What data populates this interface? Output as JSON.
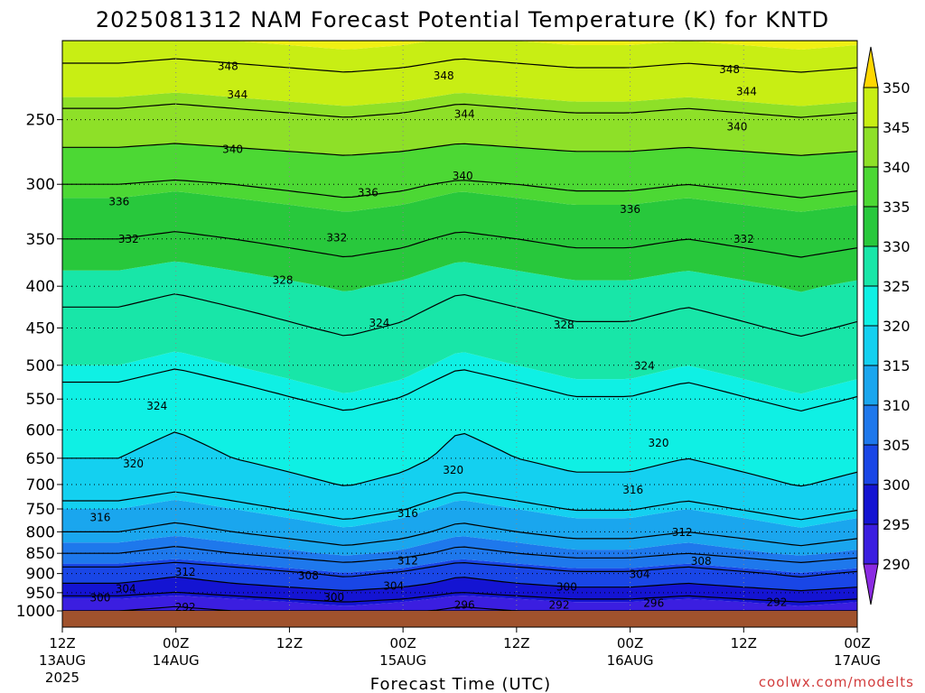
{
  "header": {
    "title": "2025081312 NAM Forecast Potential Temperature (K) for KNTD"
  },
  "footer": {
    "xlabel": "Forecast Time (UTC)",
    "credit": "coolwx.com/modelts"
  },
  "colors": {
    "ground": "#a0522d",
    "credit": "#d23c3c",
    "bands": [
      "#8b2be2",
      "#3b1ee0",
      "#1414d2",
      "#1946e6",
      "#1e78ec",
      "#1aa6ee",
      "#14d0f0",
      "#0ff0e4",
      "#18e6a8",
      "#28c83c",
      "#4cd834",
      "#8ee028",
      "#c8ee14",
      "#f0f014",
      "#ffd700"
    ]
  },
  "chart_data": {
    "type": "heatmap",
    "title": "2025081312 NAM Forecast Potential Temperature (K) for KNTD",
    "xlabel": "Forecast Time (UTC)",
    "ylabel": "",
    "y_scale": "log-pressure (hPa)",
    "y_ticks": [
      250,
      300,
      350,
      400,
      450,
      500,
      550,
      600,
      650,
      700,
      750,
      800,
      850,
      900,
      950,
      1000
    ],
    "y_range": [
      1000,
      200
    ],
    "x_range_hours": [
      0,
      84
    ],
    "x_ticks": [
      {
        "hour": 0,
        "line1": "12Z",
        "line2": "13AUG",
        "line3": "2025"
      },
      {
        "hour": 12,
        "line1": "00Z",
        "line2": "14AUG",
        "line3": ""
      },
      {
        "hour": 24,
        "line1": "12Z",
        "line2": "",
        "line3": ""
      },
      {
        "hour": 36,
        "line1": "00Z",
        "line2": "15AUG",
        "line3": ""
      },
      {
        "hour": 48,
        "line1": "12Z",
        "line2": "",
        "line3": ""
      },
      {
        "hour": 60,
        "line1": "00Z",
        "line2": "16AUG",
        "line3": ""
      },
      {
        "hour": 72,
        "line1": "12Z",
        "line2": "",
        "line3": ""
      },
      {
        "hour": 84,
        "line1": "00Z",
        "line2": "17AUG",
        "line3": ""
      }
    ],
    "colorbar": {
      "levels": [
        290,
        295,
        300,
        305,
        310,
        315,
        320,
        325,
        330,
        335,
        340,
        345,
        350
      ],
      "min_extend": 285,
      "max_extend": 355
    },
    "grid": true,
    "contour_interval_K": 4,
    "theta_profile": {
      "pressure_hPa": [
        1000,
        975,
        950,
        925,
        900,
        875,
        850,
        800,
        750,
        700,
        650,
        600,
        550,
        500,
        450,
        400,
        350,
        300,
        250,
        200
      ],
      "theta_K": [
        292,
        294,
        297,
        300,
        302,
        305,
        308,
        312,
        315,
        318,
        320,
        321,
        323,
        325,
        327,
        329,
        332,
        336,
        343,
        350
      ]
    },
    "theta_anomaly_by_hour": {
      "hour": [
        0,
        6,
        12,
        18,
        24,
        30,
        36,
        42,
        48,
        54,
        60,
        66,
        72,
        78,
        84
      ],
      "dTheta": [
        0,
        0,
        -1,
        0,
        1,
        2,
        1,
        -1,
        0,
        1,
        1,
        0,
        1,
        2,
        1
      ]
    },
    "contour_labels": [
      {
        "value": "348",
        "hour": 17.5,
        "p": 215
      },
      {
        "value": "348",
        "hour": 40.3,
        "p": 221
      },
      {
        "value": "348",
        "hour": 70.5,
        "p": 217
      },
      {
        "value": "344",
        "hour": 18.5,
        "p": 233
      },
      {
        "value": "344",
        "hour": 42.5,
        "p": 246
      },
      {
        "value": "344",
        "hour": 72.3,
        "p": 231
      },
      {
        "value": "340",
        "hour": 18.0,
        "p": 272
      },
      {
        "value": "340",
        "hour": 42.3,
        "p": 293
      },
      {
        "value": "340",
        "hour": 71.3,
        "p": 255
      },
      {
        "value": "336",
        "hour": 6.0,
        "p": 315
      },
      {
        "value": "336",
        "hour": 32.3,
        "p": 307
      },
      {
        "value": "336",
        "hour": 60.0,
        "p": 322
      },
      {
        "value": "332",
        "hour": 7.0,
        "p": 350
      },
      {
        "value": "332",
        "hour": 29.0,
        "p": 349
      },
      {
        "value": "332",
        "hour": 72.0,
        "p": 350
      },
      {
        "value": "328",
        "hour": 23.3,
        "p": 393
      },
      {
        "value": "328",
        "hour": 53.0,
        "p": 446
      },
      {
        "value": "324",
        "hour": 33.5,
        "p": 444
      },
      {
        "value": "324",
        "hour": 61.5,
        "p": 501
      },
      {
        "value": "324",
        "hour": 10.0,
        "p": 561
      },
      {
        "value": "320",
        "hour": 7.5,
        "p": 660
      },
      {
        "value": "320",
        "hour": 41.3,
        "p": 672
      },
      {
        "value": "320",
        "hour": 63.0,
        "p": 623
      },
      {
        "value": "316",
        "hour": 60.3,
        "p": 711
      },
      {
        "value": "316",
        "hour": 36.5,
        "p": 760
      },
      {
        "value": "316",
        "hour": 4.0,
        "p": 768
      },
      {
        "value": "312",
        "hour": 65.5,
        "p": 801
      },
      {
        "value": "312",
        "hour": 36.5,
        "p": 868
      },
      {
        "value": "312",
        "hour": 13.0,
        "p": 896
      },
      {
        "value": "308",
        "hour": 67.5,
        "p": 869
      },
      {
        "value": "308",
        "hour": 26.0,
        "p": 905
      },
      {
        "value": "304",
        "hour": 61.0,
        "p": 902
      },
      {
        "value": "304",
        "hour": 35.0,
        "p": 932
      },
      {
        "value": "304",
        "hour": 6.7,
        "p": 940
      },
      {
        "value": "300",
        "hour": 53.3,
        "p": 935
      },
      {
        "value": "300",
        "hour": 28.7,
        "p": 962
      },
      {
        "value": "300",
        "hour": 4.0,
        "p": 964
      },
      {
        "value": "296",
        "hour": 42.5,
        "p": 984
      },
      {
        "value": "296",
        "hour": 62.5,
        "p": 979
      },
      {
        "value": "292",
        "hour": 52.5,
        "p": 984
      },
      {
        "value": "292",
        "hour": 13.0,
        "p": 990
      },
      {
        "value": "292",
        "hour": 75.5,
        "p": 976
      }
    ]
  }
}
